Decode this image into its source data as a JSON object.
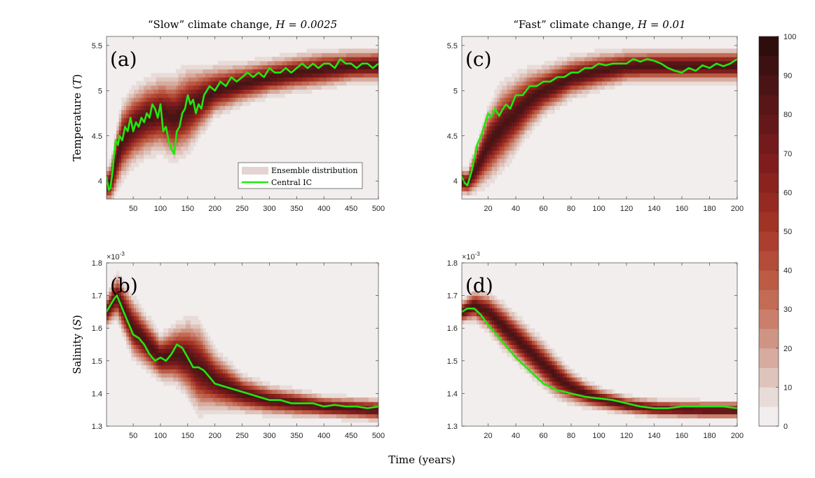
{
  "figure": {
    "xlabel": "Time (years)",
    "colorbar": {
      "ticks": [
        "0",
        "10",
        "20",
        "30",
        "40",
        "50",
        "60",
        "70",
        "80",
        "90",
        "100"
      ],
      "min": 0,
      "max": 100,
      "levels": 20,
      "colors": [
        "#f2eeed",
        "#e8dcd9",
        "#dfc4bc",
        "#d7ab9f",
        "#cf9584",
        "#c97f6c",
        "#c26b55",
        "#bb5b44",
        "#b34c38",
        "#ab3e2e",
        "#a13226",
        "#952a22",
        "#8a221e",
        "#7f1c1d",
        "#721a1c",
        "#651819",
        "#581617",
        "#4b1414",
        "#3d1111",
        "#300d0d"
      ]
    }
  },
  "chart_data": [
    {
      "id": "a",
      "type": "heatmap-line",
      "label": "(a)",
      "title": "“Slow” climate change, H = 0.0025",
      "title_plain": "“Slow” climate change, ",
      "title_math": "H = 0.0025",
      "ylabel": "Temperature (T)",
      "ylabel_plain": "Temperature (",
      "ylabel_math": "T",
      "ylabel_close": ")",
      "xlim": [
        1,
        500
      ],
      "ylim": [
        3.8,
        5.6
      ],
      "xticks": [
        50,
        100,
        150,
        200,
        250,
        300,
        350,
        400,
        450,
        500
      ],
      "yticks": [
        4,
        4.5,
        5,
        5.5
      ],
      "ytick_labels": [
        "4",
        "4.5",
        "5",
        "5.5"
      ],
      "exponent": "",
      "legend": [
        "Ensemble distribution",
        "Central IC"
      ],
      "central_ic": {
        "x": [
          1,
          5,
          8,
          12,
          15,
          18,
          22,
          25,
          30,
          35,
          40,
          45,
          50,
          55,
          60,
          65,
          70,
          75,
          80,
          85,
          90,
          95,
          100,
          105,
          110,
          115,
          120,
          125,
          130,
          135,
          140,
          145,
          150,
          155,
          160,
          165,
          170,
          175,
          180,
          190,
          200,
          210,
          220,
          230,
          240,
          250,
          260,
          270,
          280,
          290,
          300,
          310,
          320,
          330,
          340,
          350,
          360,
          370,
          380,
          390,
          400,
          410,
          420,
          430,
          440,
          450,
          460,
          470,
          480,
          490,
          500
        ],
        "y": [
          4.05,
          3.9,
          3.92,
          4.1,
          4.3,
          4.45,
          4.4,
          4.5,
          4.45,
          4.6,
          4.55,
          4.7,
          4.55,
          4.65,
          4.6,
          4.7,
          4.65,
          4.75,
          4.7,
          4.85,
          4.8,
          4.7,
          4.85,
          4.55,
          4.6,
          4.45,
          4.35,
          4.3,
          4.55,
          4.6,
          4.75,
          4.8,
          4.95,
          4.85,
          4.9,
          4.75,
          4.85,
          4.8,
          4.95,
          5.05,
          5.0,
          5.1,
          5.05,
          5.15,
          5.1,
          5.15,
          5.2,
          5.15,
          5.2,
          5.15,
          5.25,
          5.2,
          5.2,
          5.25,
          5.2,
          5.25,
          5.3,
          5.25,
          5.3,
          5.25,
          5.3,
          5.3,
          5.25,
          5.35,
          5.3,
          5.3,
          5.25,
          5.3,
          5.3,
          5.25,
          5.3
        ]
      },
      "ensemble": {
        "x": [
          1,
          10,
          20,
          30,
          50,
          75,
          100,
          125,
          150,
          175,
          200,
          250,
          300,
          350,
          400,
          450,
          500
        ],
        "mean": [
          3.95,
          4.0,
          4.25,
          4.45,
          4.6,
          4.7,
          4.75,
          4.7,
          4.8,
          4.9,
          5.0,
          5.08,
          5.15,
          5.2,
          5.24,
          5.27,
          5.28
        ],
        "spread": [
          0.08,
          0.1,
          0.15,
          0.18,
          0.18,
          0.18,
          0.18,
          0.2,
          0.2,
          0.16,
          0.12,
          0.1,
          0.09,
          0.09,
          0.09,
          0.08,
          0.08
        ]
      }
    },
    {
      "id": "c",
      "type": "heatmap-line",
      "label": "(c)",
      "title": "“Fast” climate change, H = 0.01",
      "title_plain": "“Fast” climate change, ",
      "title_math": "H = 0.01",
      "ylabel": "",
      "xlim": [
        1,
        200
      ],
      "ylim": [
        3.8,
        5.6
      ],
      "xticks": [
        20,
        40,
        60,
        80,
        100,
        120,
        140,
        160,
        180,
        200
      ],
      "yticks": [
        4,
        4.5,
        5,
        5.5
      ],
      "ytick_labels": [
        "4",
        "4.5",
        "5",
        "5.5"
      ],
      "exponent": "",
      "central_ic": {
        "x": [
          1,
          3,
          5,
          8,
          10,
          12,
          15,
          18,
          20,
          22,
          25,
          28,
          30,
          33,
          36,
          40,
          45,
          50,
          55,
          60,
          65,
          70,
          75,
          80,
          85,
          90,
          95,
          100,
          105,
          110,
          115,
          120,
          125,
          130,
          135,
          140,
          145,
          150,
          155,
          160,
          165,
          170,
          175,
          180,
          185,
          190,
          195,
          200
        ],
        "y": [
          4.05,
          3.98,
          3.95,
          4.1,
          4.25,
          4.4,
          4.5,
          4.65,
          4.75,
          4.7,
          4.8,
          4.72,
          4.78,
          4.85,
          4.8,
          4.95,
          4.95,
          5.05,
          5.05,
          5.1,
          5.1,
          5.15,
          5.15,
          5.2,
          5.2,
          5.25,
          5.25,
          5.3,
          5.28,
          5.3,
          5.3,
          5.3,
          5.35,
          5.32,
          5.35,
          5.33,
          5.3,
          5.25,
          5.22,
          5.2,
          5.25,
          5.22,
          5.28,
          5.25,
          5.3,
          5.27,
          5.3,
          5.35
        ]
      },
      "ensemble": {
        "x": [
          1,
          5,
          10,
          20,
          30,
          40,
          50,
          60,
          80,
          100,
          120,
          140,
          160,
          180,
          200
        ],
        "mean": [
          4.0,
          3.98,
          4.1,
          4.4,
          4.6,
          4.75,
          4.9,
          5.0,
          5.15,
          5.22,
          5.27,
          5.28,
          5.28,
          5.28,
          5.28
        ],
        "spread": [
          0.06,
          0.06,
          0.1,
          0.18,
          0.2,
          0.18,
          0.15,
          0.12,
          0.1,
          0.09,
          0.08,
          0.08,
          0.08,
          0.08,
          0.08
        ]
      }
    },
    {
      "id": "b",
      "type": "heatmap-line",
      "label": "(b)",
      "title": "",
      "ylabel": "Salinity (S)",
      "ylabel_plain": "Salinity (",
      "ylabel_math": "S",
      "ylabel_close": ")",
      "xlim": [
        1,
        500
      ],
      "ylim": [
        1.3,
        1.8
      ],
      "xticks": [
        50,
        100,
        150,
        200,
        250,
        300,
        350,
        400,
        450,
        500
      ],
      "yticks": [
        1.3,
        1.4,
        1.5,
        1.6,
        1.7,
        1.8
      ],
      "ytick_labels": [
        "1.3",
        "1.4",
        "1.5",
        "1.6",
        "1.7",
        "1.8"
      ],
      "exponent": "×10",
      "exponent_power": "-3",
      "central_ic": {
        "x": [
          1,
          8,
          15,
          20,
          25,
          30,
          40,
          50,
          60,
          70,
          80,
          90,
          100,
          110,
          120,
          130,
          140,
          150,
          160,
          170,
          180,
          190,
          200,
          220,
          240,
          260,
          280,
          300,
          320,
          340,
          360,
          380,
          400,
          420,
          440,
          460,
          480,
          500
        ],
        "y": [
          1.65,
          1.67,
          1.69,
          1.7,
          1.68,
          1.66,
          1.62,
          1.58,
          1.57,
          1.55,
          1.52,
          1.5,
          1.51,
          1.5,
          1.52,
          1.55,
          1.54,
          1.51,
          1.48,
          1.48,
          1.47,
          1.45,
          1.43,
          1.42,
          1.41,
          1.4,
          1.39,
          1.38,
          1.38,
          1.37,
          1.37,
          1.37,
          1.36,
          1.365,
          1.36,
          1.36,
          1.355,
          1.36
        ]
      },
      "ensemble": {
        "x": [
          1,
          20,
          50,
          100,
          130,
          150,
          170,
          200,
          250,
          300,
          350,
          400,
          450,
          500
        ],
        "mean": [
          1.65,
          1.7,
          1.6,
          1.51,
          1.52,
          1.51,
          1.48,
          1.44,
          1.4,
          1.38,
          1.37,
          1.36,
          1.355,
          1.35
        ],
        "spread": [
          0.02,
          0.03,
          0.04,
          0.03,
          0.04,
          0.05,
          0.06,
          0.04,
          0.025,
          0.02,
          0.018,
          0.015,
          0.015,
          0.015
        ]
      }
    },
    {
      "id": "d",
      "type": "heatmap-line",
      "label": "(d)",
      "title": "",
      "ylabel": "",
      "xlim": [
        1,
        200
      ],
      "ylim": [
        1.3,
        1.8
      ],
      "xticks": [
        20,
        40,
        60,
        80,
        100,
        120,
        140,
        160,
        180,
        200
      ],
      "yticks": [
        1.3,
        1.4,
        1.5,
        1.6,
        1.7,
        1.8
      ],
      "ytick_labels": [
        "1.3",
        "1.4",
        "1.5",
        "1.6",
        "1.7",
        "1.8"
      ],
      "exponent": "×10",
      "exponent_power": "-3",
      "central_ic": {
        "x": [
          1,
          5,
          10,
          15,
          20,
          30,
          40,
          50,
          60,
          70,
          80,
          90,
          100,
          110,
          120,
          130,
          140,
          150,
          160,
          170,
          180,
          190,
          200
        ],
        "y": [
          1.65,
          1.66,
          1.66,
          1.64,
          1.61,
          1.56,
          1.51,
          1.47,
          1.43,
          1.41,
          1.4,
          1.39,
          1.385,
          1.38,
          1.37,
          1.36,
          1.355,
          1.355,
          1.36,
          1.36,
          1.36,
          1.36,
          1.355
        ]
      },
      "ensemble": {
        "x": [
          1,
          10,
          20,
          30,
          40,
          50,
          60,
          70,
          80,
          90,
          100,
          120,
          140,
          160,
          180,
          200
        ],
        "mean": [
          1.65,
          1.67,
          1.65,
          1.61,
          1.57,
          1.53,
          1.49,
          1.45,
          1.42,
          1.4,
          1.385,
          1.365,
          1.355,
          1.352,
          1.35,
          1.35
        ],
        "spread": [
          0.015,
          0.02,
          0.025,
          0.03,
          0.03,
          0.03,
          0.03,
          0.028,
          0.022,
          0.018,
          0.015,
          0.012,
          0.012,
          0.012,
          0.012,
          0.012
        ]
      }
    }
  ]
}
